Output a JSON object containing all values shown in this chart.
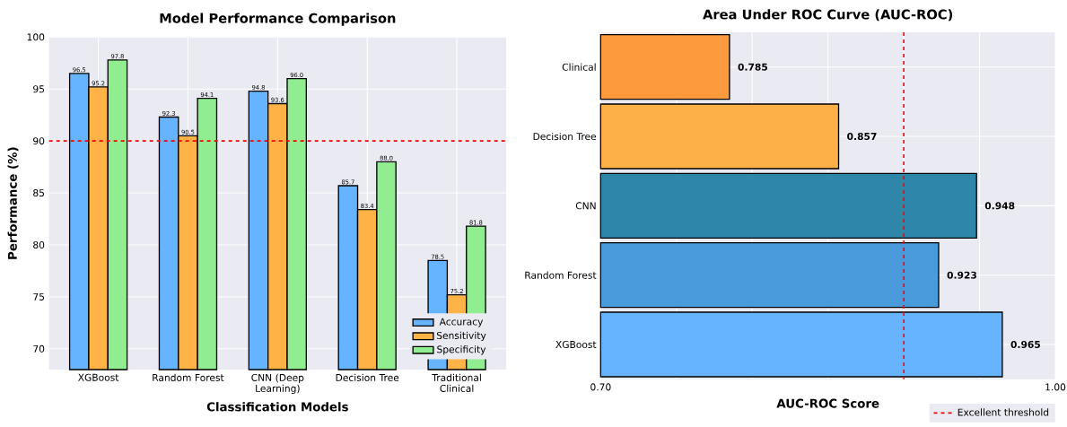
{
  "chart_data": [
    {
      "type": "bar",
      "title": "Model Performance Comparison",
      "xlabel": "Classification Models",
      "ylabel": "Performance (%)",
      "categories": [
        "XGBoost",
        "Random Forest",
        "CNN (Deep Learning)",
        "Decision Tree",
        "Traditional Clinical"
      ],
      "series": [
        {
          "name": "Accuracy",
          "color": "#66b3ff",
          "values": [
            96.5,
            92.3,
            94.8,
            85.7,
            78.5
          ],
          "value_labels": [
            "96.5",
            "92.3",
            "94.8",
            "85.7",
            "78.5"
          ]
        },
        {
          "name": "Sensitivity",
          "color": "#ffb347",
          "values": [
            95.2,
            90.5,
            93.6,
            83.4,
            75.2
          ],
          "value_labels": [
            "95.2",
            "90.5",
            "93.6",
            "83.4",
            "75.2"
          ]
        },
        {
          "name": "Specificity",
          "color": "#90ee90",
          "values": [
            97.8,
            94.1,
            96.0,
            88.0,
            81.8
          ],
          "value_labels": [
            "97.8",
            "94.1",
            "96.0",
            "88.0",
            "81.8"
          ]
        }
      ],
      "ylim": [
        68,
        100
      ],
      "yticks": [
        70,
        75,
        80,
        85,
        90,
        95,
        100
      ],
      "ref_lines": [
        {
          "axis": "y",
          "value": 90,
          "color": "#ff0000",
          "line_style": "dashed"
        }
      ],
      "grid": true,
      "legend": "bottom right"
    },
    {
      "type": "bar",
      "orientation": "horizontal",
      "title": "Area Under ROC Curve (AUC-ROC)",
      "xlabel": "AUC-ROC Score",
      "categories": [
        "Clinical",
        "Decision Tree",
        "CNN",
        "Random Forest",
        "XGBoost"
      ],
      "values": [
        0.785,
        0.857,
        0.948,
        0.923,
        0.965
      ],
      "colors": [
        "#fd9a3e",
        "#fdaf48",
        "#2e86ab",
        "#4a9bdc",
        "#66b3ff"
      ],
      "xlim": [
        0.7,
        1.0
      ],
      "xticks": [
        {
          "value": 0.7,
          "label": "0.70"
        },
        {
          "value": 0.75,
          "label": null
        },
        {
          "value": 0.8,
          "label": null
        },
        {
          "value": 0.85,
          "label": null
        },
        {
          "value": 0.9,
          "label": null
        },
        {
          "value": 0.95,
          "label": null
        },
        {
          "value": 1.0,
          "label": "1.00"
        }
      ],
      "data_labels": true,
      "ref_lines": [
        {
          "axis": "x",
          "value": 0.9,
          "label": "Excellent threshold",
          "color": "#ff0000",
          "line_style": "dashed"
        }
      ],
      "grid": true,
      "legend": "bottom right"
    }
  ]
}
